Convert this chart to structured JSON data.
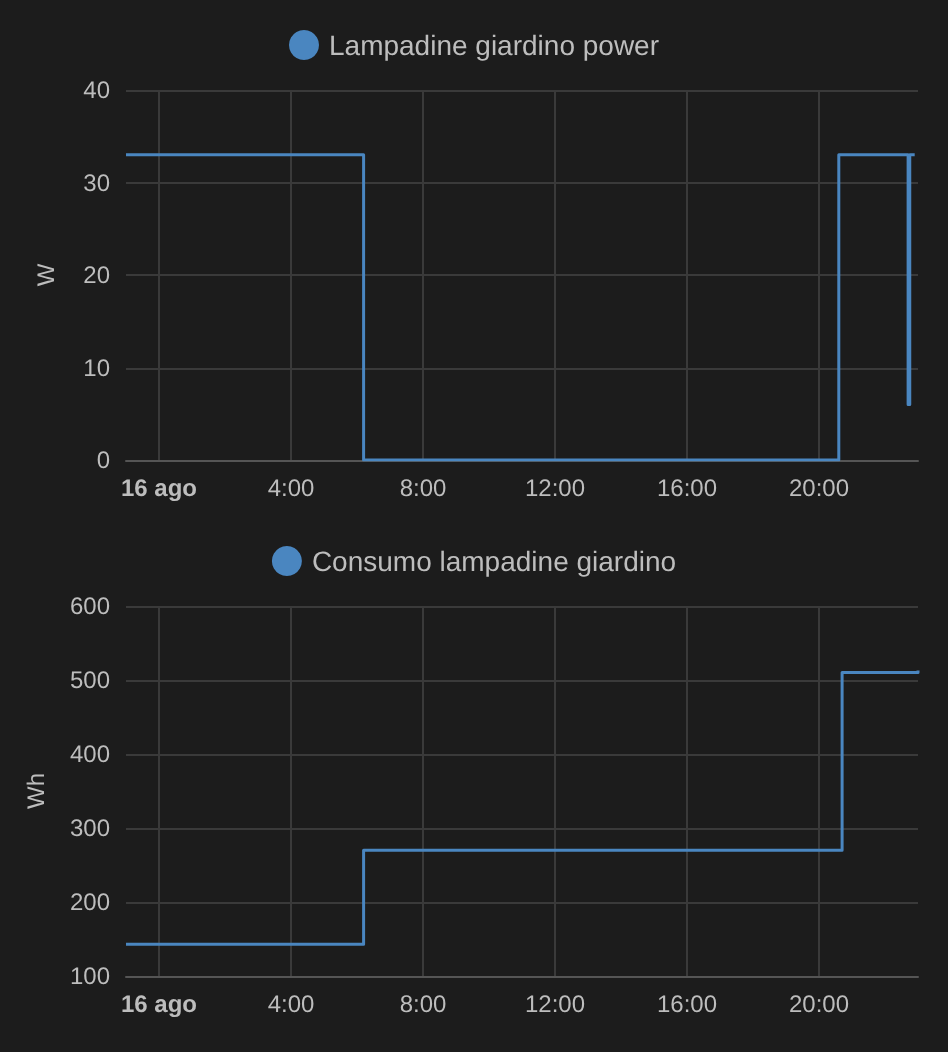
{
  "chart_data": [
    {
      "type": "step",
      "ylabel": "W",
      "legend": "top",
      "series": [
        {
          "name": "Lampadine giardino power",
          "color": "#4a86c0",
          "x": [
            "--08-15T23:00",
            "--08-16T06:12",
            "--08-16T20:36",
            "--08-16T22:42",
            "--08-16T22:45",
            "--08-16T22:54"
          ],
          "values": [
            33,
            0,
            33,
            6,
            33,
            33
          ]
        }
      ],
      "xlim": [
        "--08-15T23:00",
        "--08-16T23:00"
      ],
      "xticks": [
        {
          "value": "--08-16T00:00",
          "label": "16 ago"
        },
        {
          "value": "--08-16T04:00",
          "label": "4:00"
        },
        {
          "value": "--08-16T08:00",
          "label": "8:00"
        },
        {
          "value": "--08-16T12:00",
          "label": "12:00"
        },
        {
          "value": "--08-16T16:00",
          "label": "16:00"
        },
        {
          "value": "--08-16T20:00",
          "label": "20:00"
        }
      ],
      "ylim": [
        0,
        40
      ],
      "yticks": [
        0,
        10,
        20,
        30,
        40
      ],
      "grid": true,
      "line_style": "solid",
      "marker": "none"
    },
    {
      "type": "step",
      "ylabel": "Wh",
      "legend": "top",
      "series": [
        {
          "name": "Consumo lampadine giardino",
          "color": "#4a86c0",
          "x": [
            "--08-15T23:00",
            "--08-16T06:12",
            "--08-16T20:42",
            "--08-16T22:42",
            "--08-16T23:00"
          ],
          "values": [
            143,
            270,
            510,
            510,
            513
          ]
        }
      ],
      "xlim": [
        "--08-15T23:00",
        "--08-16T23:00"
      ],
      "xticks": [
        {
          "value": "--08-16T00:00",
          "label": "16 ago"
        },
        {
          "value": "--08-16T04:00",
          "label": "4:00"
        },
        {
          "value": "--08-16T08:00",
          "label": "8:00"
        },
        {
          "value": "--08-16T12:00",
          "label": "12:00"
        },
        {
          "value": "--08-16T16:00",
          "label": "16:00"
        },
        {
          "value": "--08-16T20:00",
          "label": "20:00"
        }
      ],
      "ylim": [
        100,
        600
      ],
      "yticks": [
        100,
        200,
        300,
        400,
        500,
        600
      ],
      "grid": true,
      "line_style": "solid",
      "marker": "none"
    }
  ]
}
